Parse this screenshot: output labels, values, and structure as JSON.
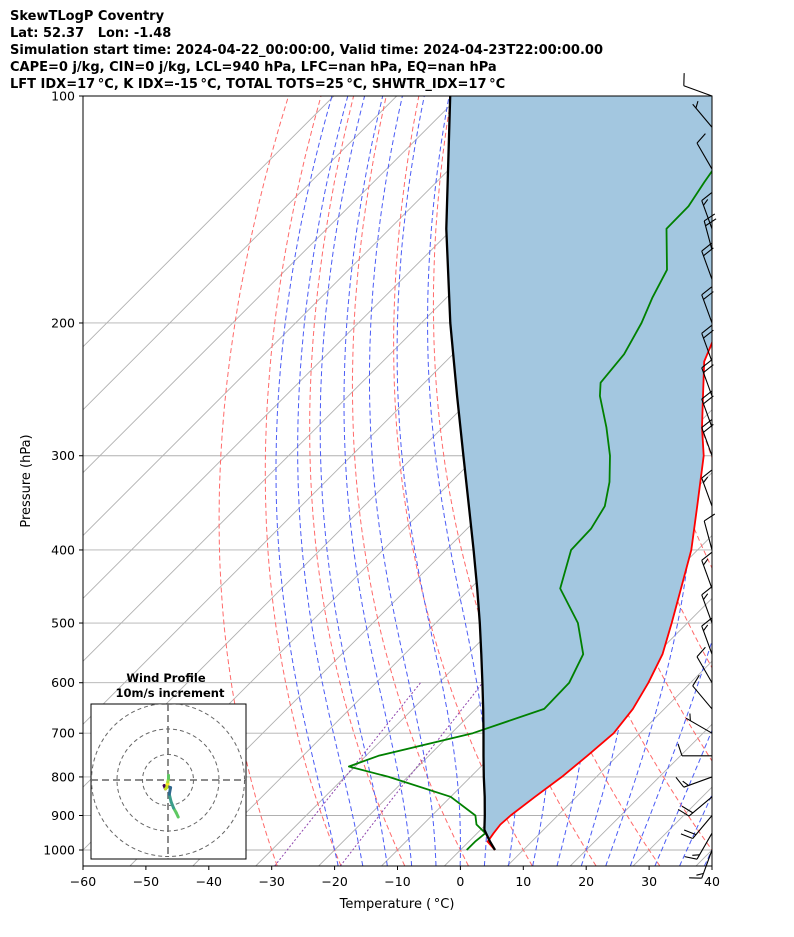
{
  "header": {
    "line1": "SkewTLogP Coventry",
    "line2": "Lat: 52.37   Lon: -1.48",
    "line3": "Simulation start time: 2024-04-22_00:00:00, Valid time: 2024-04-23T22:00:00.00",
    "line4": "CAPE=0 j/kg, CIN=0 j/kg, LCL=940 hPa, LFC=nan hPa, EQ=nan hPa",
    "line5": "LFT IDX=17 °C, K IDX=-15 °C, TOTAL TOTS=25 °C, SHWTR_IDX=17 °C"
  },
  "colors": {
    "temperature": "#ff0000",
    "dewpoint": "#008000",
    "parcel": "#000000",
    "shade": "#a3c7e0",
    "dry_adiabat": "#ff6a6a",
    "moist_adiabat": "#4b5cf5",
    "mixing_ratio": "#8e44ad",
    "isotherm": "#b0b0b0"
  },
  "chart_data": [
    {
      "type": "line",
      "subtype": "skew-t log-p",
      "xlabel": "Temperature ( °C)",
      "ylabel": "Pressure (hPa)",
      "xlim": [
        -60,
        40
      ],
      "ylim": [
        1050,
        100
      ],
      "yscale": "log",
      "x_ticks": [
        "−60",
        "−50",
        "−40",
        "−30",
        "−20",
        "−10",
        "0",
        "10",
        "20",
        "30",
        "40"
      ],
      "x_tick_values": [
        -60,
        -50,
        -40,
        -30,
        -20,
        -10,
        0,
        10,
        20,
        30,
        40
      ],
      "y_ticks": [
        "100",
        "200",
        "300",
        "400",
        "500",
        "600",
        "700",
        "800",
        "900",
        "1000"
      ],
      "y_tick_values": [
        100,
        200,
        300,
        400,
        500,
        600,
        700,
        800,
        900,
        1000
      ],
      "skew": 45,
      "grid": true,
      "series": [
        {
          "key": "temperature",
          "points": [
            [
              1000,
              5.5
            ],
            [
              975,
              3.0
            ],
            [
              950,
              2.6
            ],
            [
              925,
              2.3
            ],
            [
              900,
              2.5
            ],
            [
              850,
              3.4
            ],
            [
              800,
              4.5
            ],
            [
              750,
              5.2
            ],
            [
              700,
              5.8
            ],
            [
              650,
              5.0
            ],
            [
              600,
              3.3
            ],
            [
              550,
              1.0
            ],
            [
              500,
              -2.5
            ],
            [
              450,
              -6.5
            ],
            [
              400,
              -11.0
            ],
            [
              350,
              -17.0
            ],
            [
              300,
              -24.0
            ],
            [
              275,
              -28.8
            ],
            [
              250,
              -33.6
            ],
            [
              225,
              -38.9
            ],
            [
              210,
              -41.0
            ],
            [
              200,
              -41.9
            ],
            [
              190,
              -41.5
            ],
            [
              180,
              -41.0
            ],
            [
              170,
              -41.0
            ],
            [
              160,
              -41.2
            ],
            [
              150,
              -43.5
            ],
            [
              140,
              -45.4
            ],
            [
              130,
              -46.3
            ],
            [
              120,
              -48.1
            ],
            [
              110,
              -49.0
            ],
            [
              100,
              -50.4
            ]
          ]
        },
        {
          "key": "dewpoint",
          "points": [
            [
              1000,
              1.0
            ],
            [
              975,
              1.0
            ],
            [
              950,
              1.3
            ],
            [
              925,
              -1.5
            ],
            [
              900,
              -3.1
            ],
            [
              850,
              -10.0
            ],
            [
              800,
              -23.0
            ],
            [
              775,
              -31.0
            ],
            [
              750,
              -28.0
            ],
            [
              700,
              -16.6
            ],
            [
              650,
              -9.1
            ],
            [
              600,
              -9.3
            ],
            [
              550,
              -11.6
            ],
            [
              500,
              -17.4
            ],
            [
              450,
              -25.7
            ],
            [
              400,
              -30.1
            ],
            [
              375,
              -30.3
            ],
            [
              350,
              -31.7
            ],
            [
              325,
              -34.8
            ],
            [
              300,
              -38.9
            ],
            [
              275,
              -44.0
            ],
            [
              250,
              -50.0
            ],
            [
              240,
              -52.0
            ],
            [
              220,
              -52.8
            ],
            [
              200,
              -55.0
            ],
            [
              185,
              -57.3
            ],
            [
              170,
              -59.4
            ],
            [
              150,
              -66.0
            ],
            [
              140,
              -66.1
            ],
            [
              130,
              -67.4
            ],
            [
              115,
              -69.3
            ],
            [
              100,
              -72.3
            ]
          ]
        },
        {
          "key": "parcel",
          "points": [
            [
              1000,
              5.5
            ],
            [
              975,
              3.4
            ],
            [
              950,
              1.4
            ],
            [
              940,
              0.6
            ],
            [
              900,
              -1.6
            ],
            [
              850,
              -4.6
            ],
            [
              800,
              -7.9
            ],
            [
              750,
              -11.3
            ],
            [
              700,
              -14.9
            ],
            [
              650,
              -18.8
            ],
            [
              600,
              -23.1
            ],
            [
              550,
              -27.8
            ],
            [
              500,
              -33.0
            ],
            [
              450,
              -38.9
            ],
            [
              400,
              -45.6
            ],
            [
              350,
              -53.3
            ],
            [
              300,
              -62.2
            ],
            [
              250,
              -72.7
            ],
            [
              200,
              -85.4
            ],
            [
              150,
              -101.0
            ],
            [
              100,
              -121.5
            ]
          ]
        }
      ],
      "wind_barbs": [
        {
          "p": 1000,
          "speed_kt": 15,
          "dir": 200
        },
        {
          "p": 950,
          "speed_kt": 15,
          "dir": 210
        },
        {
          "p": 900,
          "speed_kt": 20,
          "dir": 220
        },
        {
          "p": 850,
          "speed_kt": 20,
          "dir": 230
        },
        {
          "p": 800,
          "speed_kt": 15,
          "dir": 250
        },
        {
          "p": 750,
          "speed_kt": 10,
          "dir": 270
        },
        {
          "p": 700,
          "speed_kt": 5,
          "dir": 300
        },
        {
          "p": 650,
          "speed_kt": 10,
          "dir": 320
        },
        {
          "p": 600,
          "speed_kt": 10,
          "dir": 330
        },
        {
          "p": 550,
          "speed_kt": 15,
          "dir": 340
        },
        {
          "p": 500,
          "speed_kt": 15,
          "dir": 340
        },
        {
          "p": 450,
          "speed_kt": 15,
          "dir": 340
        },
        {
          "p": 400,
          "speed_kt": 10,
          "dir": 345
        },
        {
          "p": 350,
          "speed_kt": 15,
          "dir": 340
        },
        {
          "p": 300,
          "speed_kt": 20,
          "dir": 340
        },
        {
          "p": 275,
          "speed_kt": 20,
          "dir": 340
        },
        {
          "p": 250,
          "speed_kt": 20,
          "dir": 340
        },
        {
          "p": 225,
          "speed_kt": 20,
          "dir": 340
        },
        {
          "p": 200,
          "speed_kt": 20,
          "dir": 340
        },
        {
          "p": 175,
          "speed_kt": 20,
          "dir": 340
        },
        {
          "p": 160,
          "speed_kt": 20,
          "dir": 345
        },
        {
          "p": 150,
          "speed_kt": 15,
          "dir": 340
        },
        {
          "p": 125,
          "speed_kt": 10,
          "dir": 330
        },
        {
          "p": 110,
          "speed_kt": 5,
          "dir": 320
        },
        {
          "p": 100,
          "speed_kt": 10,
          "dir": 290
        }
      ]
    },
    {
      "type": "line",
      "subtype": "hodograph",
      "title": "Wind Profile",
      "subtitle": "10m/s increment",
      "rings_ms": [
        10,
        20,
        30
      ],
      "points_uv": [
        [
          4.0,
          -14.5
        ],
        [
          3.2,
          -12.8
        ],
        [
          2.2,
          -11.0
        ],
        [
          1.2,
          -8.5
        ],
        [
          0.5,
          -5.6
        ],
        [
          1.0,
          -3.0
        ],
        [
          0.0,
          -2.6
        ],
        [
          -1.2,
          -2.5
        ],
        [
          -1.5,
          -2.2
        ],
        [
          -1.0,
          -3.5
        ],
        [
          -0.5,
          -3.0
        ],
        [
          -0.3,
          -1.5
        ],
        [
          0.0,
          -1.5
        ],
        [
          -0.1,
          -0.8
        ],
        [
          0.2,
          0.6
        ],
        [
          0.2,
          1.8
        ]
      ]
    }
  ]
}
